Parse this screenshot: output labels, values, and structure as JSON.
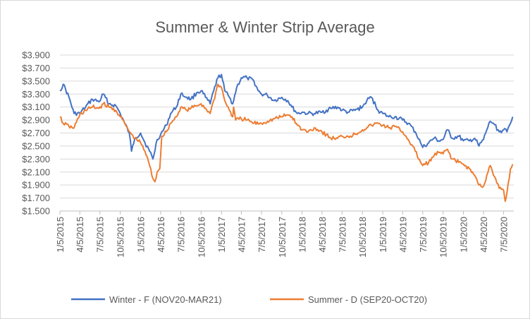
{
  "chart_data": {
    "type": "line",
    "title": "Summer & Winter Strip Average",
    "xlabel": "",
    "ylabel": "",
    "ylim": [
      1.5,
      3.9
    ],
    "y_ticks": [
      "$1.500",
      "$1.700",
      "$1.900",
      "$2.100",
      "$2.300",
      "$2.500",
      "$2.700",
      "$2.900",
      "$3.100",
      "$3.300",
      "$3.500",
      "$3.700",
      "$3.900"
    ],
    "y_tick_values": [
      1.5,
      1.7,
      1.9,
      2.1,
      2.3,
      2.5,
      2.7,
      2.9,
      3.1,
      3.3,
      3.5,
      3.7,
      3.9
    ],
    "x_ticks": [
      "1/5/2015",
      "4/5/2015",
      "7/5/2015",
      "10/5/2015",
      "1/5/2016",
      "4/5/2016",
      "7/5/2016",
      "10/5/2016",
      "1/5/2017",
      "4/5/2017",
      "7/5/2017",
      "10/5/2017",
      "1/5/2018",
      "4/5/2018",
      "7/5/2018",
      "10/5/2018",
      "1/5/2019",
      "4/5/2019",
      "7/5/2019",
      "10/5/2019",
      "1/5/2020",
      "4/5/2020",
      "7/5/2020"
    ],
    "x_tick_dates": [
      "2015-01-05",
      "2015-04-05",
      "2015-07-05",
      "2015-10-05",
      "2016-01-05",
      "2016-04-05",
      "2016-07-05",
      "2016-10-05",
      "2017-01-05",
      "2017-04-05",
      "2017-07-05",
      "2017-10-05",
      "2018-01-05",
      "2018-04-05",
      "2018-07-05",
      "2018-10-05",
      "2019-01-05",
      "2019-04-05",
      "2019-07-05",
      "2019-10-05",
      "2020-01-05",
      "2020-04-05",
      "2020-07-05"
    ],
    "grid": true,
    "legend_position": "bottom",
    "series": [
      {
        "name": "Winter - F (NOV20-MAR21)",
        "color": "#4472c4",
        "points": [
          [
            "2015-01-05",
            3.35
          ],
          [
            "2015-01-20",
            3.45
          ],
          [
            "2015-02-15",
            3.25
          ],
          [
            "2015-03-10",
            3.0
          ],
          [
            "2015-04-05",
            3.0
          ],
          [
            "2015-05-01",
            3.1
          ],
          [
            "2015-06-01",
            3.22
          ],
          [
            "2015-07-01",
            3.18
          ],
          [
            "2015-07-20",
            3.3
          ],
          [
            "2015-08-15",
            3.15
          ],
          [
            "2015-09-15",
            3.12
          ],
          [
            "2015-10-05",
            3.0
          ],
          [
            "2015-10-25",
            2.85
          ],
          [
            "2015-11-15",
            2.7
          ],
          [
            "2015-11-25",
            2.42
          ],
          [
            "2015-12-10",
            2.62
          ],
          [
            "2016-01-05",
            2.7
          ],
          [
            "2016-01-25",
            2.55
          ],
          [
            "2016-02-15",
            2.42
          ],
          [
            "2016-03-01",
            2.3
          ],
          [
            "2016-03-20",
            2.6
          ],
          [
            "2016-04-05",
            2.68
          ],
          [
            "2016-05-01",
            2.82
          ],
          [
            "2016-05-20",
            3.0
          ],
          [
            "2016-06-15",
            3.1
          ],
          [
            "2016-07-05",
            3.3
          ],
          [
            "2016-08-01",
            3.25
          ],
          [
            "2016-08-20",
            3.22
          ],
          [
            "2016-09-15",
            3.32
          ],
          [
            "2016-10-05",
            3.35
          ],
          [
            "2016-10-25",
            3.25
          ],
          [
            "2016-11-15",
            3.15
          ],
          [
            "2016-12-01",
            3.35
          ],
          [
            "2016-12-20",
            3.55
          ],
          [
            "2017-01-05",
            3.6
          ],
          [
            "2017-01-20",
            3.35
          ],
          [
            "2017-02-10",
            3.25
          ],
          [
            "2017-02-25",
            3.15
          ],
          [
            "2017-03-15",
            3.4
          ],
          [
            "2017-04-05",
            3.55
          ],
          [
            "2017-05-01",
            3.55
          ],
          [
            "2017-06-01",
            3.5
          ],
          [
            "2017-06-20",
            3.35
          ],
          [
            "2017-07-05",
            3.3
          ],
          [
            "2017-08-01",
            3.28
          ],
          [
            "2017-09-01",
            3.2
          ],
          [
            "2017-10-05",
            3.25
          ],
          [
            "2017-11-01",
            3.2
          ],
          [
            "2017-11-20",
            3.1
          ],
          [
            "2017-12-15",
            3.0
          ],
          [
            "2018-01-05",
            3.02
          ],
          [
            "2018-02-01",
            3.0
          ],
          [
            "2018-03-01",
            3.0
          ],
          [
            "2018-04-05",
            3.02
          ],
          [
            "2018-05-15",
            3.08
          ],
          [
            "2018-06-15",
            3.1
          ],
          [
            "2018-07-05",
            3.05
          ],
          [
            "2018-08-01",
            3.02
          ],
          [
            "2018-09-01",
            3.05
          ],
          [
            "2018-10-05",
            3.1
          ],
          [
            "2018-10-25",
            3.2
          ],
          [
            "2018-11-15",
            3.25
          ],
          [
            "2018-12-15",
            3.05
          ],
          [
            "2019-01-05",
            3.0
          ],
          [
            "2019-02-01",
            2.95
          ],
          [
            "2019-03-01",
            2.95
          ],
          [
            "2019-04-05",
            2.9
          ],
          [
            "2019-05-01",
            2.85
          ],
          [
            "2019-06-01",
            2.72
          ],
          [
            "2019-06-25",
            2.55
          ],
          [
            "2019-07-05",
            2.48
          ],
          [
            "2019-08-01",
            2.55
          ],
          [
            "2019-08-25",
            2.62
          ],
          [
            "2019-09-15",
            2.58
          ],
          [
            "2019-10-05",
            2.6
          ],
          [
            "2019-10-25",
            2.75
          ],
          [
            "2019-11-15",
            2.62
          ],
          [
            "2019-12-15",
            2.65
          ],
          [
            "2020-01-05",
            2.58
          ],
          [
            "2020-02-01",
            2.58
          ],
          [
            "2020-02-25",
            2.62
          ],
          [
            "2020-03-15",
            2.5
          ],
          [
            "2020-04-05",
            2.6
          ],
          [
            "2020-04-20",
            2.75
          ],
          [
            "2020-05-05",
            2.88
          ],
          [
            "2020-05-20",
            2.85
          ],
          [
            "2020-06-15",
            2.72
          ],
          [
            "2020-07-05",
            2.75
          ],
          [
            "2020-07-20",
            2.72
          ],
          [
            "2020-08-05",
            2.85
          ],
          [
            "2020-08-15",
            2.95
          ]
        ]
      },
      {
        "name": "Summer - D (SEP20-OCT20)",
        "color": "#ed7d31",
        "points": [
          [
            "2015-01-05",
            2.95
          ],
          [
            "2015-01-20",
            2.85
          ],
          [
            "2015-02-15",
            2.8
          ],
          [
            "2015-03-10",
            2.78
          ],
          [
            "2015-04-05",
            2.98
          ],
          [
            "2015-05-01",
            3.05
          ],
          [
            "2015-06-01",
            3.1
          ],
          [
            "2015-07-01",
            3.08
          ],
          [
            "2015-07-20",
            3.15
          ],
          [
            "2015-08-15",
            3.1
          ],
          [
            "2015-09-15",
            3.05
          ],
          [
            "2015-10-05",
            2.95
          ],
          [
            "2015-10-25",
            2.85
          ],
          [
            "2015-11-15",
            2.72
          ],
          [
            "2015-11-25",
            2.68
          ],
          [
            "2015-12-10",
            2.62
          ],
          [
            "2016-01-05",
            2.55
          ],
          [
            "2016-01-25",
            2.42
          ],
          [
            "2016-02-15",
            2.2
          ],
          [
            "2016-03-01",
            2.0
          ],
          [
            "2016-03-10",
            1.95
          ],
          [
            "2016-03-20",
            2.1
          ],
          [
            "2016-04-01",
            2.15
          ],
          [
            "2016-04-10",
            2.65
          ],
          [
            "2016-05-01",
            2.72
          ],
          [
            "2016-05-20",
            2.85
          ],
          [
            "2016-06-15",
            2.95
          ],
          [
            "2016-07-05",
            3.1
          ],
          [
            "2016-08-01",
            3.05
          ],
          [
            "2016-08-20",
            3.08
          ],
          [
            "2016-09-15",
            3.12
          ],
          [
            "2016-10-05",
            3.15
          ],
          [
            "2016-10-25",
            3.08
          ],
          [
            "2016-11-15",
            3.0
          ],
          [
            "2016-12-01",
            3.2
          ],
          [
            "2016-12-20",
            3.45
          ],
          [
            "2017-01-05",
            3.4
          ],
          [
            "2017-01-20",
            3.2
          ],
          [
            "2017-02-10",
            3.05
          ],
          [
            "2017-02-25",
            2.95
          ],
          [
            "2017-03-01",
            3.1
          ],
          [
            "2017-03-10",
            2.9
          ],
          [
            "2017-04-05",
            2.92
          ],
          [
            "2017-05-01",
            2.9
          ],
          [
            "2017-06-01",
            2.85
          ],
          [
            "2017-07-05",
            2.85
          ],
          [
            "2017-08-01",
            2.88
          ],
          [
            "2017-09-01",
            2.92
          ],
          [
            "2017-10-05",
            2.95
          ],
          [
            "2017-11-01",
            2.98
          ],
          [
            "2017-11-20",
            2.95
          ],
          [
            "2017-12-15",
            2.82
          ],
          [
            "2018-01-05",
            2.75
          ],
          [
            "2018-02-01",
            2.72
          ],
          [
            "2018-03-01",
            2.78
          ],
          [
            "2018-04-05",
            2.72
          ],
          [
            "2018-05-15",
            2.62
          ],
          [
            "2018-06-15",
            2.62
          ],
          [
            "2018-07-05",
            2.65
          ],
          [
            "2018-08-01",
            2.65
          ],
          [
            "2018-09-01",
            2.68
          ],
          [
            "2018-10-05",
            2.75
          ],
          [
            "2018-10-25",
            2.78
          ],
          [
            "2018-11-15",
            2.82
          ],
          [
            "2018-12-15",
            2.85
          ],
          [
            "2019-01-05",
            2.82
          ],
          [
            "2019-02-01",
            2.78
          ],
          [
            "2019-03-01",
            2.8
          ],
          [
            "2019-04-05",
            2.72
          ],
          [
            "2019-05-01",
            2.6
          ],
          [
            "2019-06-01",
            2.42
          ],
          [
            "2019-06-25",
            2.25
          ],
          [
            "2019-07-05",
            2.2
          ],
          [
            "2019-08-01",
            2.25
          ],
          [
            "2019-08-25",
            2.35
          ],
          [
            "2019-09-15",
            2.4
          ],
          [
            "2019-10-05",
            2.38
          ],
          [
            "2019-10-25",
            2.45
          ],
          [
            "2019-11-15",
            2.3
          ],
          [
            "2019-12-15",
            2.25
          ],
          [
            "2020-01-05",
            2.22
          ],
          [
            "2020-02-01",
            2.15
          ],
          [
            "2020-02-25",
            2.05
          ],
          [
            "2020-03-15",
            1.9
          ],
          [
            "2020-04-05",
            1.88
          ],
          [
            "2020-04-20",
            2.05
          ],
          [
            "2020-05-05",
            2.2
          ],
          [
            "2020-05-20",
            2.05
          ],
          [
            "2020-06-15",
            1.85
          ],
          [
            "2020-07-05",
            1.82
          ],
          [
            "2020-07-12",
            1.65
          ],
          [
            "2020-07-20",
            1.78
          ],
          [
            "2020-08-05",
            2.15
          ],
          [
            "2020-08-15",
            2.22
          ]
        ]
      }
    ]
  }
}
